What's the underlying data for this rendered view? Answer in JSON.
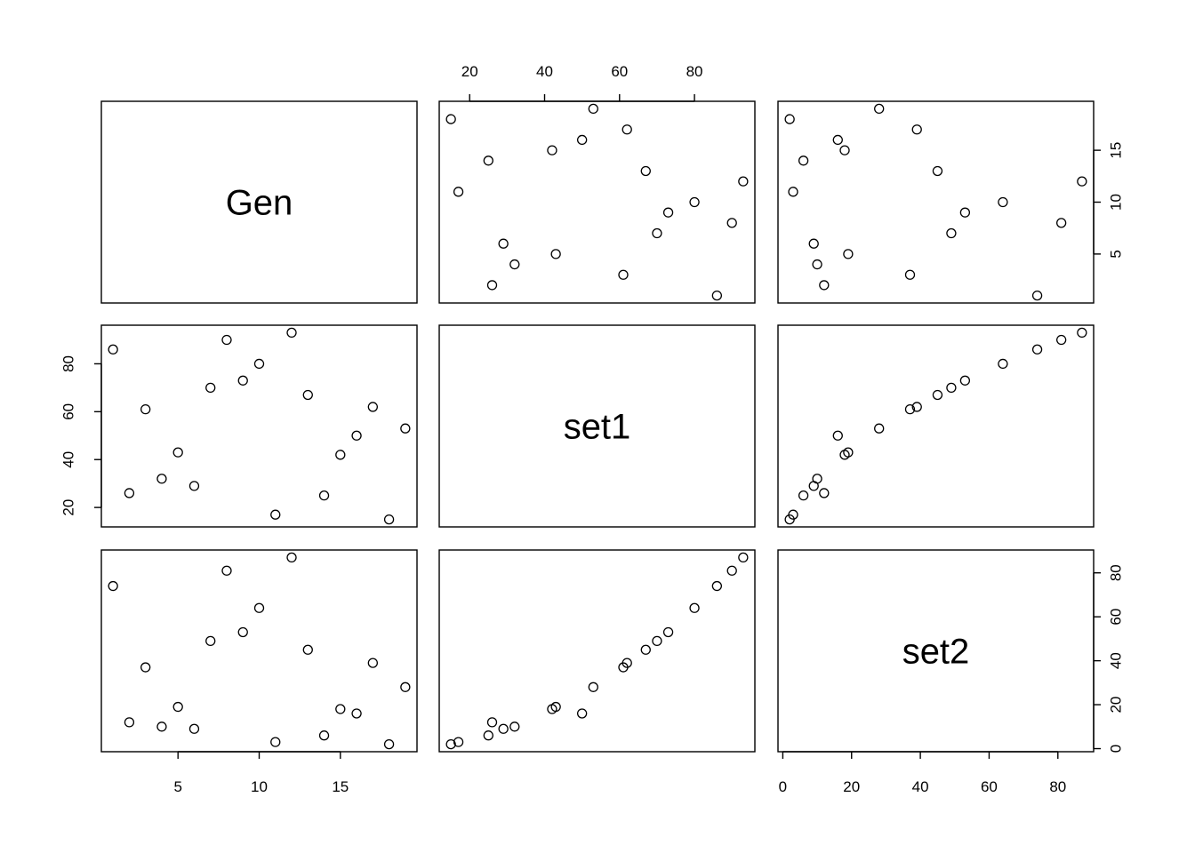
{
  "chart_data": {
    "type": "scatter",
    "subtype": "pairs-matrix",
    "variables": [
      {
        "name": "Gen",
        "range": [
          1,
          19
        ],
        "ticks": [
          5,
          10,
          15
        ]
      },
      {
        "name": "set1",
        "range": [
          15,
          93
        ],
        "ticks": [
          20,
          40,
          60,
          80
        ]
      },
      {
        "name": "set2",
        "range": [
          2,
          87
        ],
        "ticks": [
          0,
          20,
          40,
          60,
          80
        ]
      }
    ],
    "rows": [
      {
        "Gen": 1,
        "set1": 86,
        "set2": 74
      },
      {
        "Gen": 2,
        "set1": 26,
        "set2": 12
      },
      {
        "Gen": 3,
        "set1": 61,
        "set2": 37
      },
      {
        "Gen": 4,
        "set1": 32,
        "set2": 10
      },
      {
        "Gen": 5,
        "set1": 43,
        "set2": 19
      },
      {
        "Gen": 6,
        "set1": 29,
        "set2": 9
      },
      {
        "Gen": 7,
        "set1": 70,
        "set2": 49
      },
      {
        "Gen": 8,
        "set1": 90,
        "set2": 81
      },
      {
        "Gen": 9,
        "set1": 73,
        "set2": 53
      },
      {
        "Gen": 10,
        "set1": 80,
        "set2": 64
      },
      {
        "Gen": 11,
        "set1": 17,
        "set2": 3
      },
      {
        "Gen": 12,
        "set1": 93,
        "set2": 87
      },
      {
        "Gen": 13,
        "set1": 67,
        "set2": 45
      },
      {
        "Gen": 14,
        "set1": 25,
        "set2": 6
      },
      {
        "Gen": 15,
        "set1": 42,
        "set2": 18
      },
      {
        "Gen": 16,
        "set1": 50,
        "set2": 16
      },
      {
        "Gen": 17,
        "set1": 62,
        "set2": 39
      },
      {
        "Gen": 18,
        "set1": 15,
        "set2": 2
      },
      {
        "Gen": 19,
        "set1": 53,
        "set2": 28
      }
    ],
    "axis_placement": {
      "Gen": {
        "axis_side": "bottom",
        "diag_index": 0
      },
      "set1": {
        "axis_side": "top",
        "diag_index": 1
      },
      "set2": {
        "axis_side": "bottom",
        "diag_index": 2
      },
      "row_Gen": "right",
      "row_set1": "left",
      "row_set2": "right"
    },
    "title": "",
    "grid": false,
    "legend": "none"
  }
}
